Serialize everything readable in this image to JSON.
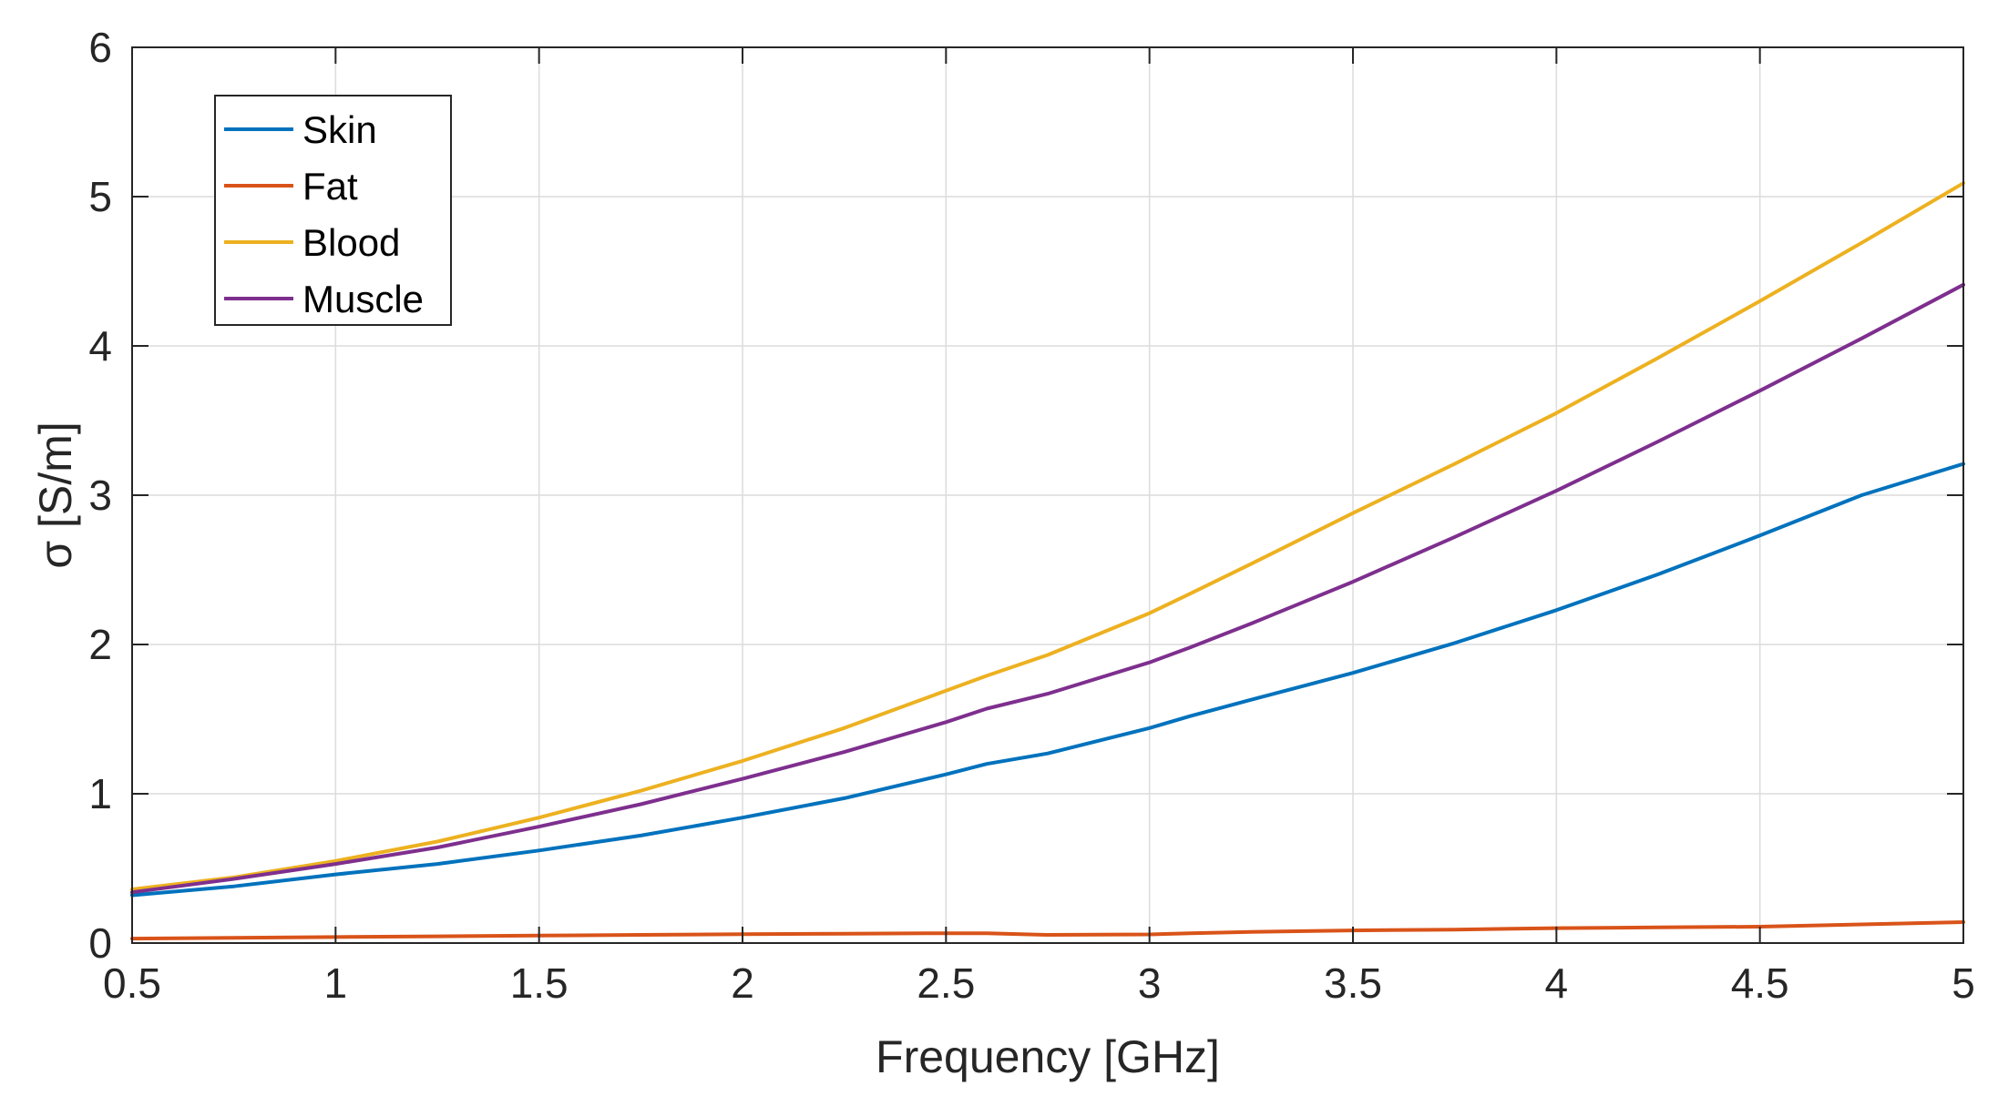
{
  "chart_data": {
    "type": "line",
    "title": "",
    "xlabel": "Frequency [GHz]",
    "ylabel": "σ [S/m]",
    "xlim": [
      0.5,
      5
    ],
    "ylim": [
      0,
      6
    ],
    "xticks": [
      0.5,
      1,
      1.5,
      2,
      2.5,
      3,
      3.5,
      4,
      4.5,
      5
    ],
    "xtick_labels": [
      "0.5",
      "1",
      "1.5",
      "2",
      "2.5",
      "3",
      "3.5",
      "4",
      "4.5",
      "5"
    ],
    "yticks": [
      0,
      1,
      2,
      3,
      4,
      5,
      6
    ],
    "ytick_labels": [
      "0",
      "1",
      "2",
      "3",
      "4",
      "5",
      "6"
    ],
    "grid": true,
    "legend_position": "top-left",
    "x": [
      0.5,
      0.75,
      1.0,
      1.25,
      1.5,
      1.75,
      2.0,
      2.25,
      2.5,
      2.6,
      2.75,
      3.0,
      3.1,
      3.25,
      3.5,
      3.75,
      4.0,
      4.25,
      4.5,
      4.75,
      5.0
    ],
    "series": [
      {
        "name": "Skin",
        "color": "#0072bd",
        "values": [
          0.32,
          0.38,
          0.46,
          0.53,
          0.62,
          0.72,
          0.84,
          0.97,
          1.13,
          1.2,
          1.27,
          1.44,
          1.52,
          1.63,
          1.81,
          2.01,
          2.23,
          2.47,
          2.73,
          3.0,
          3.21
        ]
      },
      {
        "name": "Fat",
        "color": "#d95319",
        "values": [
          0.03,
          0.035,
          0.04,
          0.045,
          0.05,
          0.055,
          0.06,
          0.063,
          0.066,
          0.065,
          0.055,
          0.058,
          0.065,
          0.075,
          0.085,
          0.09,
          0.1,
          0.105,
          0.11,
          0.125,
          0.14
        ]
      },
      {
        "name": "Blood",
        "color": "#edb120",
        "values": [
          0.36,
          0.44,
          0.55,
          0.68,
          0.84,
          1.02,
          1.22,
          1.44,
          1.69,
          1.79,
          1.93,
          2.21,
          2.34,
          2.54,
          2.88,
          3.21,
          3.55,
          3.92,
          4.3,
          4.69,
          5.09
        ]
      },
      {
        "name": "Muscle",
        "color": "#7e2f8e",
        "values": [
          0.34,
          0.43,
          0.53,
          0.64,
          0.78,
          0.93,
          1.1,
          1.28,
          1.48,
          1.57,
          1.67,
          1.88,
          1.98,
          2.14,
          2.42,
          2.72,
          3.03,
          3.36,
          3.7,
          4.05,
          4.41
        ]
      }
    ]
  }
}
